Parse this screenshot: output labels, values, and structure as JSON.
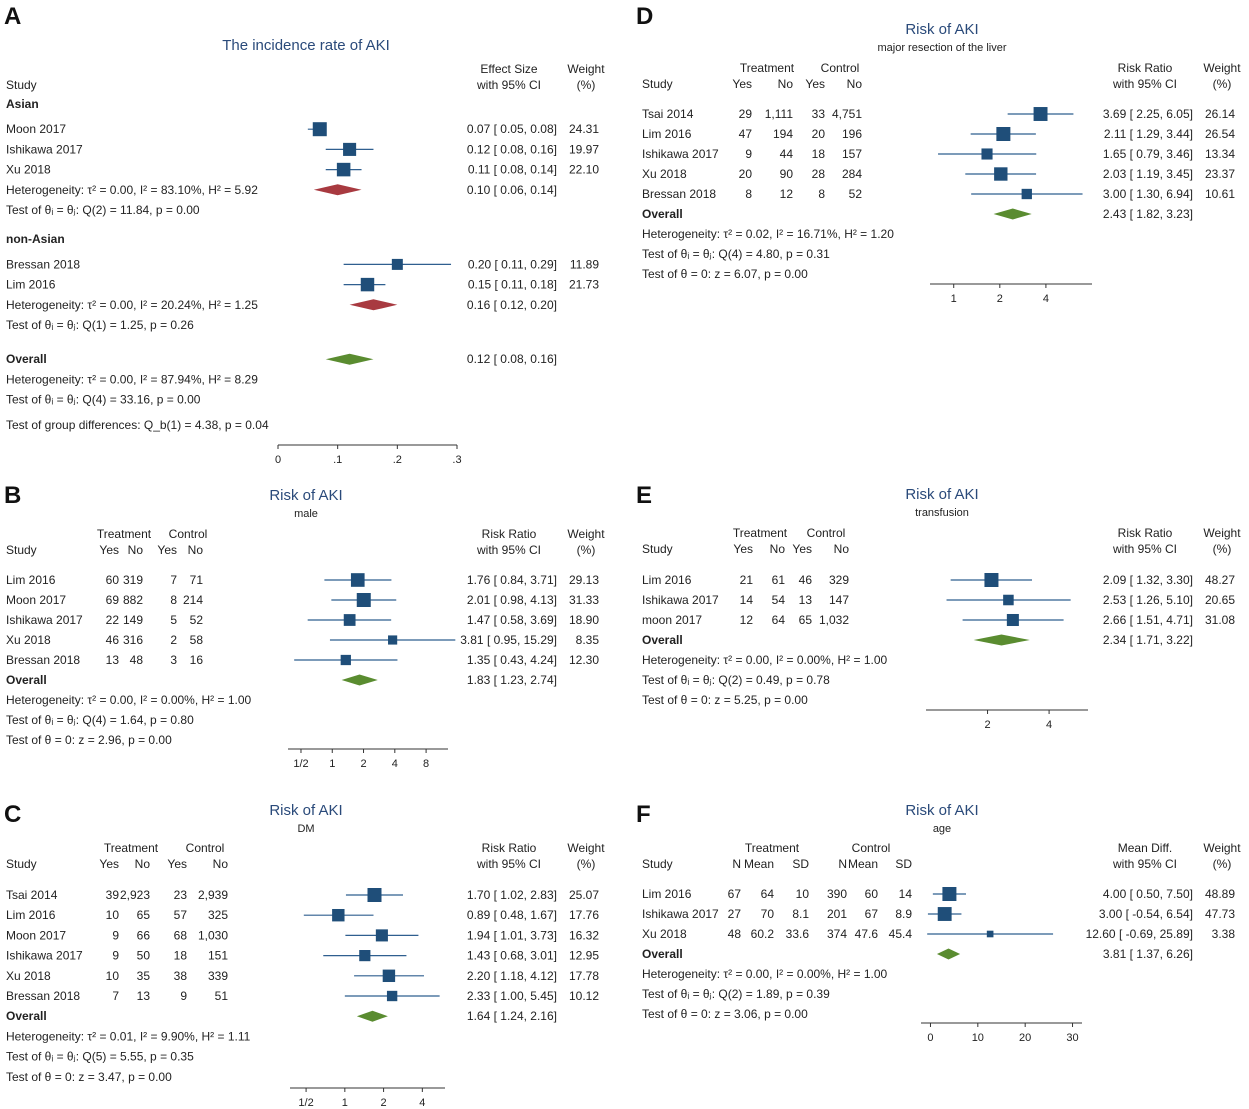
{
  "colors": {
    "title": "#2a4a7a",
    "box": "#1f4e79",
    "ci": "#2f5f8f",
    "red": "#a83a40",
    "green": "#5a8c30",
    "text": "#222222",
    "axis": "#333333"
  },
  "chart_data": [
    {
      "panel": "A",
      "type": "forest",
      "measure": "Effect Size",
      "title": "The incidence rate of AKI",
      "subtitle": "",
      "col_study": "Study",
      "col_es": [
        "Effect Size",
        "with 95% CI"
      ],
      "col_w": [
        "Weight",
        "(%)"
      ],
      "treat_header": "",
      "treat_cols": [],
      "control_header": "",
      "control_cols": [],
      "axis": {
        "scale": "linear",
        "min": 0,
        "max": 0.3,
        "ticks": [
          0,
          0.1,
          0.2,
          0.3
        ],
        "tick_labels": [
          "0",
          ".1",
          ".2",
          ".3"
        ]
      },
      "groups": [
        {
          "label": "Asian",
          "studies": [
            {
              "name": "Moon 2017",
              "es": 0.07,
              "lo": 0.05,
              "hi": 0.08,
              "weight": 24.31,
              "es_text": "0.07 [  0.05,  0.08]",
              "w_text": "24.31",
              "cells": []
            },
            {
              "name": "Ishikawa 2017",
              "es": 0.12,
              "lo": 0.08,
              "hi": 0.16,
              "weight": 19.97,
              "es_text": "0.12 [  0.08,  0.16]",
              "w_text": "19.97",
              "cells": []
            },
            {
              "name": "Xu 2018",
              "es": 0.11,
              "lo": 0.08,
              "hi": 0.14,
              "weight": 22.1,
              "es_text": "0.11 [  0.08,  0.14]",
              "w_text": "22.10",
              "cells": []
            }
          ],
          "summary": {
            "label": "Heterogeneity: τ² = 0.00, I² = 83.10%, H² = 5.92",
            "es": 0.1,
            "lo": 0.06,
            "hi": 0.14,
            "es_text": "0.10 [  0.06,  0.14]",
            "color": "red"
          },
          "stats": [
            "Test of θᵢ = θⱼ: Q(2) = 11.84, p = 0.00"
          ]
        },
        {
          "label": "non-Asian",
          "studies": [
            {
              "name": "Bressan 2018",
              "es": 0.2,
              "lo": 0.11,
              "hi": 0.29,
              "weight": 11.89,
              "es_text": "0.20 [  0.11,  0.29]",
              "w_text": "11.89",
              "cells": []
            },
            {
              "name": "Lim 2016",
              "es": 0.15,
              "lo": 0.11,
              "hi": 0.18,
              "weight": 21.73,
              "es_text": "0.15 [  0.11,  0.18]",
              "w_text": "21.73",
              "cells": []
            }
          ],
          "summary": {
            "label": "Heterogeneity: τ² = 0.00, I² = 20.24%, H² = 1.25",
            "es": 0.16,
            "lo": 0.12,
            "hi": 0.2,
            "es_text": "0.16 [  0.12,  0.20]",
            "color": "red"
          },
          "stats": [
            "Test of θᵢ = θⱼ: Q(1) = 1.25, p = 0.26"
          ]
        }
      ],
      "overall": {
        "label": "Overall",
        "es": 0.12,
        "lo": 0.08,
        "hi": 0.16,
        "es_text": "0.12 [  0.08,  0.16]"
      },
      "overall_stats": [
        "Heterogeneity: τ² = 0.00, I² = 87.94%, H² = 8.29",
        "Test of θᵢ = θⱼ: Q(4) = 33.16, p = 0.00",
        "Test of group differences: Q_b(1) = 4.38, p = 0.04"
      ]
    },
    {
      "panel": "B",
      "type": "forest",
      "measure": "Risk Ratio",
      "title": "Risk of AKI",
      "subtitle": "male",
      "col_study": "Study",
      "col_es": [
        "Risk Ratio",
        "with 95% CI"
      ],
      "col_w": [
        "Weight",
        "(%)"
      ],
      "treat_header": "Treatment",
      "treat_cols": [
        "Yes",
        "No"
      ],
      "control_header": "Control",
      "control_cols": [
        "Yes",
        "No"
      ],
      "axis": {
        "scale": "log2",
        "min": 0.375,
        "max": 13,
        "ticks": [
          0.5,
          1,
          2,
          4,
          8
        ],
        "tick_labels": [
          "1/2",
          "1",
          "2",
          "4",
          "8"
        ]
      },
      "groups": [
        {
          "label": "",
          "studies": [
            {
              "name": "Lim 2016",
              "es": 1.76,
              "lo": 0.84,
              "hi": 3.71,
              "weight": 29.13,
              "es_text": "1.76 [  0.84,  3.71]",
              "w_text": "29.13",
              "cells": [
                "60",
                "319",
                "7",
                "71"
              ]
            },
            {
              "name": "Moon 2017",
              "es": 2.01,
              "lo": 0.98,
              "hi": 4.13,
              "weight": 31.33,
              "es_text": "2.01 [  0.98,  4.13]",
              "w_text": "31.33",
              "cells": [
                "69",
                "882",
                "8",
                "214"
              ]
            },
            {
              "name": "Ishikawa 2017",
              "es": 1.47,
              "lo": 0.58,
              "hi": 3.69,
              "weight": 18.9,
              "es_text": "1.47 [  0.58,  3.69]",
              "w_text": "18.90",
              "cells": [
                "22",
                "149",
                "5",
                "52"
              ]
            },
            {
              "name": "Xu 2018",
              "es": 3.81,
              "lo": 0.95,
              "hi": 15.29,
              "weight": 8.35,
              "es_text": "3.81 [  0.95, 15.29]",
              "w_text": "8.35",
              "cells": [
                "46",
                "316",
                "2",
                "58"
              ]
            },
            {
              "name": "Bressan 2018",
              "es": 1.35,
              "lo": 0.43,
              "hi": 4.24,
              "weight": 12.3,
              "es_text": "1.35 [  0.43,  4.24]",
              "w_text": "12.30",
              "cells": [
                "13",
                "48",
                "3",
                "16"
              ]
            }
          ],
          "summary": null,
          "stats": []
        }
      ],
      "overall": {
        "label": "Overall",
        "es": 1.83,
        "lo": 1.23,
        "hi": 2.74,
        "es_text": "1.83 [  1.23,  2.74]"
      },
      "overall_stats": [
        "Heterogeneity: τ² = 0.00, I² = 0.00%, H² = 1.00",
        "Test of θᵢ = θⱼ: Q(4) = 1.64, p = 0.80",
        "Test of θ = 0: z = 2.96, p = 0.00"
      ]
    },
    {
      "panel": "C",
      "type": "forest",
      "measure": "Risk Ratio",
      "title": "Risk of AKI",
      "subtitle": "DM",
      "col_study": "Study",
      "col_es": [
        "Risk Ratio",
        "with 95% CI"
      ],
      "col_w": [
        "Weight",
        "(%)"
      ],
      "treat_header": "Treatment",
      "treat_cols": [
        "Yes",
        "No"
      ],
      "control_header": "Control",
      "control_cols": [
        "Yes",
        "No"
      ],
      "axis": {
        "scale": "log2",
        "min": 0.375,
        "max": 6,
        "ticks": [
          0.5,
          1,
          2,
          4
        ],
        "tick_labels": [
          "1/2",
          "1",
          "2",
          "4"
        ]
      },
      "groups": [
        {
          "label": "",
          "studies": [
            {
              "name": "Tsai 2014",
              "es": 1.7,
              "lo": 1.02,
              "hi": 2.83,
              "weight": 25.07,
              "es_text": "1.70 [  1.02,  2.83]",
              "w_text": "25.07",
              "cells": [
                "39",
                "2,923",
                "23",
                "2,939"
              ]
            },
            {
              "name": "Lim 2016",
              "es": 0.89,
              "lo": 0.48,
              "hi": 1.67,
              "weight": 17.76,
              "es_text": "0.89 [  0.48,  1.67]",
              "w_text": "17.76",
              "cells": [
                "10",
                "65",
                "57",
                "325"
              ]
            },
            {
              "name": "Moon  2017",
              "es": 1.94,
              "lo": 1.01,
              "hi": 3.73,
              "weight": 16.32,
              "es_text": "1.94 [  1.01,  3.73]",
              "w_text": "16.32",
              "cells": [
                "9",
                "66",
                "68",
                "1,030"
              ]
            },
            {
              "name": "Ishikawa 2017",
              "es": 1.43,
              "lo": 0.68,
              "hi": 3.01,
              "weight": 12.95,
              "es_text": "1.43 [  0.68,  3.01]",
              "w_text": "12.95",
              "cells": [
                "9",
                "50",
                "18",
                "151"
              ]
            },
            {
              "name": "Xu 2018",
              "es": 2.2,
              "lo": 1.18,
              "hi": 4.12,
              "weight": 17.78,
              "es_text": "2.20 [  1.18,  4.12]",
              "w_text": "17.78",
              "cells": [
                "10",
                "35",
                "38",
                "339"
              ]
            },
            {
              "name": "Bressan 2018",
              "es": 2.33,
              "lo": 1.0,
              "hi": 5.45,
              "weight": 10.12,
              "es_text": "2.33 [  1.00,  5.45]",
              "w_text": "10.12",
              "cells": [
                "7",
                "13",
                "9",
                "51"
              ]
            }
          ],
          "summary": null,
          "stats": []
        }
      ],
      "overall": {
        "label": "Overall",
        "es": 1.64,
        "lo": 1.24,
        "hi": 2.16,
        "es_text": "1.64 [  1.24,  2.16]"
      },
      "overall_stats": [
        "Heterogeneity: τ² = 0.01, I² = 9.90%, H² = 1.11",
        "Test of θᵢ = θⱼ: Q(5) = 5.55, p = 0.35",
        "Test of θ = 0: z = 3.47, p = 0.00"
      ]
    },
    {
      "panel": "D",
      "type": "forest",
      "measure": "Risk Ratio",
      "title": "Risk of AKI",
      "subtitle": "major resection of the liver",
      "col_study": "Study",
      "col_es": [
        "Risk Ratio",
        "with 95% CI"
      ],
      "col_w": [
        "Weight",
        "(%)"
      ],
      "treat_header": "Treatment",
      "treat_cols": [
        "Yes",
        "No"
      ],
      "control_header": "Control",
      "control_cols": [
        "Yes",
        "No"
      ],
      "axis": {
        "scale": "log2",
        "min": 0.7,
        "max": 8,
        "ticks": [
          1,
          2,
          4
        ],
        "tick_labels": [
          "1",
          "2",
          "4"
        ]
      },
      "groups": [
        {
          "label": "",
          "studies": [
            {
              "name": "Tsai 2014",
              "es": 3.69,
              "lo": 2.25,
              "hi": 6.05,
              "weight": 26.14,
              "es_text": "3.69 [  2.25,  6.05]",
              "w_text": "26.14",
              "cells": [
                "29",
                "1,111",
                "33",
                "4,751"
              ]
            },
            {
              "name": "Lim 2016",
              "es": 2.11,
              "lo": 1.29,
              "hi": 3.44,
              "weight": 26.54,
              "es_text": "2.11 [  1.29,  3.44]",
              "w_text": "26.54",
              "cells": [
                "47",
                "194",
                "20",
                "196"
              ]
            },
            {
              "name": "Ishikawa 2017",
              "es": 1.65,
              "lo": 0.79,
              "hi": 3.46,
              "weight": 13.34,
              "es_text": "1.65 [  0.79,  3.46]",
              "w_text": "13.34",
              "cells": [
                "9",
                "44",
                "18",
                "157"
              ]
            },
            {
              "name": "Xu 2018",
              "es": 2.03,
              "lo": 1.19,
              "hi": 3.45,
              "weight": 23.37,
              "es_text": "2.03 [  1.19,  3.45]",
              "w_text": "23.37",
              "cells": [
                "20",
                "90",
                "28",
                "284"
              ]
            },
            {
              "name": "Bressan 2018",
              "es": 3.0,
              "lo": 1.3,
              "hi": 6.94,
              "weight": 10.61,
              "es_text": "3.00 [  1.30,  6.94]",
              "w_text": "10.61",
              "cells": [
                "8",
                "12",
                "8",
                "52"
              ]
            }
          ],
          "summary": null,
          "stats": []
        }
      ],
      "overall": {
        "label": "Overall",
        "es": 2.43,
        "lo": 1.82,
        "hi": 3.23,
        "es_text": "2.43 [  1.82,  3.23]"
      },
      "overall_stats": [
        "Heterogeneity: τ² = 0.02, I² = 16.71%, H² = 1.20",
        "Test of θᵢ = θⱼ: Q(4) = 4.80, p = 0.31",
        "Test of θ = 0: z = 6.07, p = 0.00"
      ]
    },
    {
      "panel": "E",
      "type": "forest",
      "measure": "Risk Ratio",
      "title": "Risk of AKI",
      "subtitle": "transfusion",
      "col_study": "Study",
      "col_es": [
        "Risk Ratio",
        "with 95% CI"
      ],
      "col_w": [
        "Weight",
        "(%)"
      ],
      "treat_header": "Treatment",
      "treat_cols": [
        "Yes",
        "No"
      ],
      "control_header": "Control",
      "control_cols": [
        "Yes",
        "No"
      ],
      "axis": {
        "scale": "log2",
        "min": 1.0,
        "max": 6.2,
        "ticks": [
          2,
          4
        ],
        "tick_labels": [
          "2",
          "4"
        ]
      },
      "groups": [
        {
          "label": "",
          "studies": [
            {
              "name": "Lim 2016",
              "es": 2.09,
              "lo": 1.32,
              "hi": 3.3,
              "weight": 48.27,
              "es_text": "2.09 [  1.32,  3.30]",
              "w_text": "48.27",
              "cells": [
                "21",
                "61",
                "46",
                "329"
              ]
            },
            {
              "name": "Ishikawa 2017",
              "es": 2.53,
              "lo": 1.26,
              "hi": 5.1,
              "weight": 20.65,
              "es_text": "2.53 [  1.26,  5.10]",
              "w_text": "20.65",
              "cells": [
                "14",
                "54",
                "13",
                "147"
              ]
            },
            {
              "name": "moon 2017",
              "es": 2.66,
              "lo": 1.51,
              "hi": 4.71,
              "weight": 31.08,
              "es_text": "2.66 [  1.51,  4.71]",
              "w_text": "31.08",
              "cells": [
                "12",
                "64",
                "65",
                "1,032"
              ]
            }
          ],
          "summary": null,
          "stats": []
        }
      ],
      "overall": {
        "label": "Overall",
        "es": 2.34,
        "lo": 1.71,
        "hi": 3.22,
        "es_text": "2.34 [  1.71,  3.22]"
      },
      "overall_stats": [
        "Heterogeneity: τ² = 0.00, I² = 0.00%, H² = 1.00",
        "Test of θᵢ = θⱼ: Q(2) = 0.49, p = 0.78",
        "Test of θ = 0: z = 5.25, p = 0.00"
      ]
    },
    {
      "panel": "F",
      "type": "forest",
      "measure": "Mean Diff.",
      "title": "Risk of AKI",
      "subtitle": "age",
      "col_study": "Study",
      "col_es": [
        "Mean Diff.",
        "with 95% CI"
      ],
      "col_w": [
        "Weight",
        "(%)"
      ],
      "treat_header": "Treatment",
      "treat_cols": [
        "N",
        "Mean",
        "SD"
      ],
      "control_header": "Control",
      "control_cols": [
        "N",
        "Mean",
        "SD"
      ],
      "axis": {
        "scale": "linear",
        "min": -2,
        "max": 32,
        "ticks": [
          0,
          10,
          20,
          30
        ],
        "tick_labels": [
          "0",
          "10",
          "20",
          "30"
        ]
      },
      "groups": [
        {
          "label": "",
          "studies": [
            {
              "name": "Lim 2016",
              "es": 4.0,
              "lo": 0.5,
              "hi": 7.5,
              "weight": 48.89,
              "es_text": "4.00 [  0.50,   7.50]",
              "w_text": "48.89",
              "cells": [
                "67",
                "64",
                "10",
                "390",
                "60",
                "14"
              ]
            },
            {
              "name": "Ishikawa 2017",
              "es": 3.0,
              "lo": -0.54,
              "hi": 6.54,
              "weight": 47.73,
              "es_text": "3.00 [ -0.54,   6.54]",
              "w_text": "47.73",
              "cells": [
                "27",
                "70",
                "8.1",
                "201",
                "67",
                "8.9"
              ]
            },
            {
              "name": "Xu 2018",
              "es": 12.6,
              "lo": -0.69,
              "hi": 25.89,
              "weight": 3.38,
              "es_text": "12.60 [ -0.69,  25.89]",
              "w_text": "3.38",
              "cells": [
                "48",
                "60.2",
                "33.6",
                "374",
                "47.6",
                "45.4"
              ]
            }
          ],
          "summary": null,
          "stats": []
        }
      ],
      "overall": {
        "label": "Overall",
        "es": 3.81,
        "lo": 1.37,
        "hi": 6.26,
        "es_text": "3.81 [  1.37,   6.26]"
      },
      "overall_stats": [
        "Heterogeneity: τ² = 0.00, I² = 0.00%, H² = 1.00",
        "Test of θᵢ = θⱼ: Q(2) = 1.89, p = 0.39",
        "Test of θ = 0: z = 3.06, p = 0.00"
      ]
    }
  ]
}
